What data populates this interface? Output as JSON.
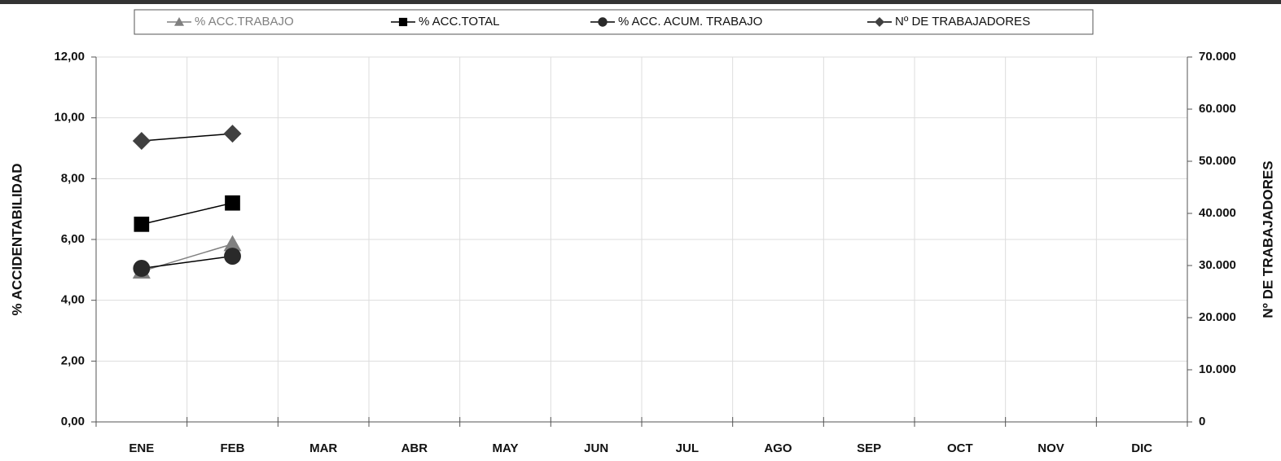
{
  "chart_data": {
    "type": "line",
    "y_label": "% ACCIDENTABILIDAD",
    "y2_label": "Nº DE TRABAJADORES",
    "categories": [
      "ENE",
      "FEB",
      "MAR",
      "ABR",
      "MAY",
      "JUN",
      "JUL",
      "AGO",
      "SEP",
      "OCT",
      "NOV",
      "DIC"
    ],
    "series": [
      {
        "name": "% ACC.TRABAJO",
        "color": "#808080",
        "marker": "triangle",
        "values": [
          4.95,
          5.85,
          null,
          null,
          null,
          null,
          null,
          null,
          null,
          null,
          null,
          null
        ]
      },
      {
        "name": "% ACC.TOTAL",
        "color": "#000000",
        "marker": "square",
        "values": [
          6.5,
          7.2,
          null,
          null,
          null,
          null,
          null,
          null,
          null,
          null,
          null,
          null
        ]
      },
      {
        "name": "% ACC. ACUM. TRABAJO",
        "color": "#2a2a2a",
        "marker": "circle",
        "values": [
          5.05,
          5.45,
          null,
          null,
          null,
          null,
          null,
          null,
          null,
          null,
          null,
          null
        ]
      },
      {
        "name": "Nº DE TRABAJADORES",
        "color": "#404040",
        "marker": "diamond",
        "axis": "y2",
        "values": [
          53900,
          55300,
          null,
          null,
          null,
          null,
          null,
          null,
          null,
          null,
          null,
          null
        ]
      }
    ],
    "ylim": [
      0,
      12
    ],
    "yticks": [
      {
        "value": 0,
        "label": "0,00"
      },
      {
        "value": 2,
        "label": "2,00"
      },
      {
        "value": 4,
        "label": "4,00"
      },
      {
        "value": 6,
        "label": "6,00"
      },
      {
        "value": 8,
        "label": "8,00"
      },
      {
        "value": 10,
        "label": "10,00"
      },
      {
        "value": 12,
        "label": "12,00"
      }
    ],
    "y2lim": [
      0,
      70000
    ],
    "y2ticks": [
      0,
      {
        "value": 10000,
        "label": "10.000"
      },
      {
        "value": 20000,
        "label": "20.000"
      },
      {
        "value": 30000,
        "label": "30.000"
      },
      {
        "value": 40000,
        "label": "40.000"
      },
      {
        "value": 50000,
        "label": "50.000"
      },
      {
        "value": 60000,
        "label": "60.000"
      },
      {
        "value": 70000,
        "label": "70.000"
      }
    ],
    "grid": true,
    "legend": "top"
  }
}
